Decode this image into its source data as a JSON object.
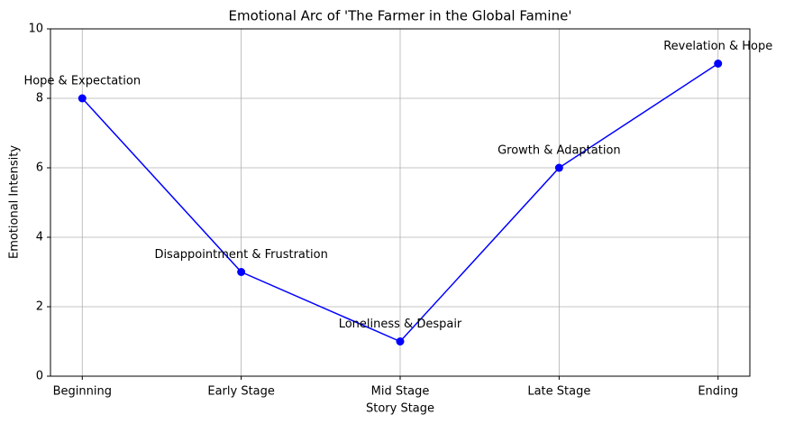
{
  "chart_data": {
    "type": "line",
    "title": "Emotional Arc of 'The Farmer in the Global Famine'",
    "x_label": "Story Stage",
    "y_label": "Emotional Intensity",
    "categories": [
      "Beginning",
      "Early Stage",
      "Mid Stage",
      "Late Stage",
      "Ending"
    ],
    "values": [
      8,
      3,
      1,
      6,
      9
    ],
    "point_labels": [
      "Hope & Expectation",
      "Disappointment & Frustration",
      "Loneliness & Despair",
      "Growth & Adaptation",
      "Revelation & Hope"
    ],
    "color": "#0000ff",
    "ylim": [
      0,
      10
    ],
    "yticks": [
      0,
      2,
      4,
      6,
      8,
      10
    ],
    "grid": true
  }
}
